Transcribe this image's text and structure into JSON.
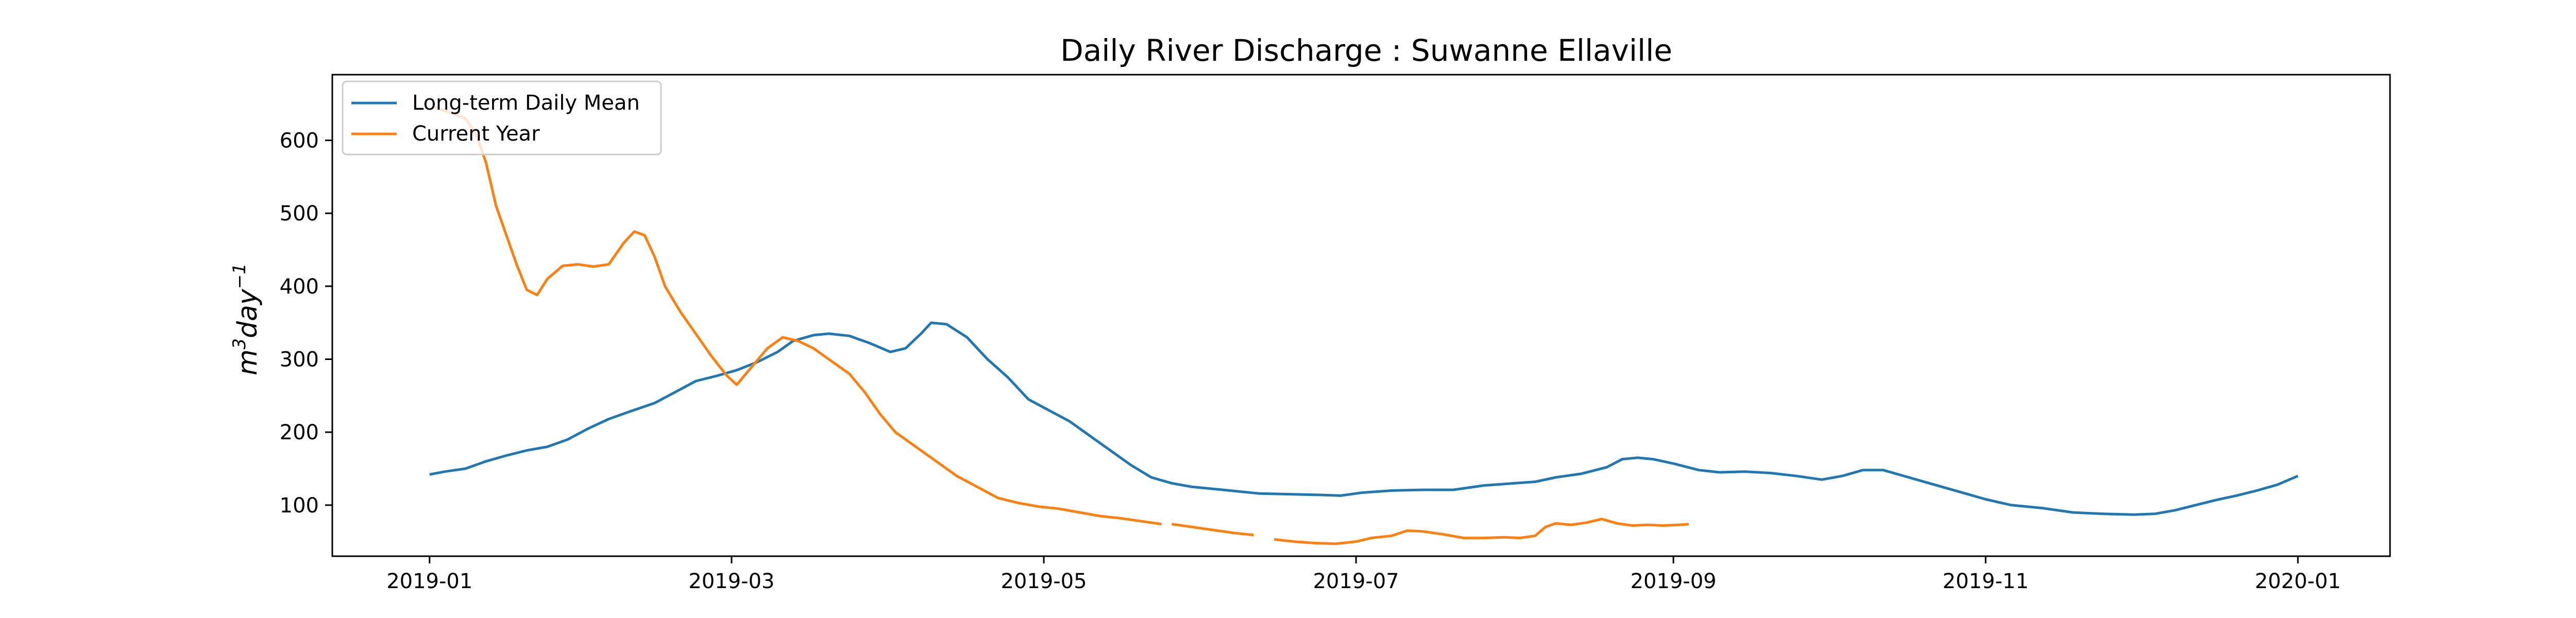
{
  "chart_data": {
    "type": "line",
    "title": "Daily River Discharge : Suwanne Ellaville",
    "xlabel": "",
    "ylabel": "m³day⁻¹",
    "ylabel_parts": {
      "base": "m",
      "sup1": "3",
      "mid": "day",
      "sup2": "−1"
    },
    "xlim": [
      "2018-12-13",
      "2020-01-19"
    ],
    "ylim": [
      30,
      690
    ],
    "xticks": [
      {
        "date": "2019-01-01",
        "label": "2019-01"
      },
      {
        "date": "2019-03-01",
        "label": "2019-03"
      },
      {
        "date": "2019-05-01",
        "label": "2019-05"
      },
      {
        "date": "2019-07-01",
        "label": "2019-07"
      },
      {
        "date": "2019-09-01",
        "label": "2019-09"
      },
      {
        "date": "2019-11-01",
        "label": "2019-11"
      },
      {
        "date": "2020-01-01",
        "label": "2020-01"
      }
    ],
    "yticks": [
      100,
      200,
      300,
      400,
      500,
      600
    ],
    "grid": false,
    "legend_position": "top-left",
    "series": [
      {
        "name": "Long-term Daily Mean",
        "color": "#1f77b4",
        "segments": [
          [
            [
              "2019-01-01",
              142
            ],
            [
              "2019-01-04",
              146
            ],
            [
              "2019-01-08",
              150
            ],
            [
              "2019-01-12",
              160
            ],
            [
              "2019-01-16",
              168
            ],
            [
              "2019-01-20",
              175
            ],
            [
              "2019-01-24",
              180
            ],
            [
              "2019-01-28",
              190
            ],
            [
              "2019-02-01",
              205
            ],
            [
              "2019-02-05",
              218
            ],
            [
              "2019-02-09",
              228
            ],
            [
              "2019-02-14",
              240
            ],
            [
              "2019-02-18",
              255
            ],
            [
              "2019-02-22",
              270
            ],
            [
              "2019-02-26",
              277
            ],
            [
              "2019-03-02",
              285
            ],
            [
              "2019-03-06",
              296
            ],
            [
              "2019-03-10",
              310
            ],
            [
              "2019-03-13",
              325
            ],
            [
              "2019-03-17",
              333
            ],
            [
              "2019-03-20",
              335
            ],
            [
              "2019-03-24",
              332
            ],
            [
              "2019-03-28",
              322
            ],
            [
              "2019-04-01",
              310
            ],
            [
              "2019-04-04",
              315
            ],
            [
              "2019-04-07",
              335
            ],
            [
              "2019-04-09",
              350
            ],
            [
              "2019-04-12",
              348
            ],
            [
              "2019-04-16",
              330
            ],
            [
              "2019-04-20",
              300
            ],
            [
              "2019-04-24",
              275
            ],
            [
              "2019-04-28",
              245
            ],
            [
              "2019-05-02",
              230
            ],
            [
              "2019-05-06",
              215
            ],
            [
              "2019-05-10",
              195
            ],
            [
              "2019-05-14",
              175
            ],
            [
              "2019-05-18",
              155
            ],
            [
              "2019-05-22",
              138
            ],
            [
              "2019-05-26",
              130
            ],
            [
              "2019-05-30",
              125
            ],
            [
              "2019-06-05",
              121
            ],
            [
              "2019-06-12",
              116
            ],
            [
              "2019-06-18",
              115
            ],
            [
              "2019-06-24",
              114
            ],
            [
              "2019-06-28",
              113
            ],
            [
              "2019-07-02",
              117
            ],
            [
              "2019-07-08",
              120
            ],
            [
              "2019-07-14",
              121
            ],
            [
              "2019-07-20",
              121
            ],
            [
              "2019-07-26",
              127
            ],
            [
              "2019-08-01",
              130
            ],
            [
              "2019-08-05",
              132
            ],
            [
              "2019-08-09",
              138
            ],
            [
              "2019-08-14",
              143
            ],
            [
              "2019-08-19",
              152
            ],
            [
              "2019-08-22",
              163
            ],
            [
              "2019-08-25",
              165
            ],
            [
              "2019-08-28",
              163
            ],
            [
              "2019-09-01",
              157
            ],
            [
              "2019-09-06",
              148
            ],
            [
              "2019-09-10",
              145
            ],
            [
              "2019-09-15",
              146
            ],
            [
              "2019-09-20",
              144
            ],
            [
              "2019-09-25",
              140
            ],
            [
              "2019-09-30",
              135
            ],
            [
              "2019-10-04",
              140
            ],
            [
              "2019-10-08",
              148
            ],
            [
              "2019-10-12",
              148
            ],
            [
              "2019-10-17",
              138
            ],
            [
              "2019-10-22",
              128
            ],
            [
              "2019-10-27",
              118
            ],
            [
              "2019-11-01",
              108
            ],
            [
              "2019-11-06",
              100
            ],
            [
              "2019-11-12",
              96
            ],
            [
              "2019-11-18",
              90
            ],
            [
              "2019-11-24",
              88
            ],
            [
              "2019-11-30",
              87
            ],
            [
              "2019-12-04",
              88
            ],
            [
              "2019-12-08",
              93
            ],
            [
              "2019-12-12",
              100
            ],
            [
              "2019-12-16",
              107
            ],
            [
              "2019-12-20",
              113
            ],
            [
              "2019-12-24",
              120
            ],
            [
              "2019-12-28",
              128
            ],
            [
              "2020-01-01",
              140
            ]
          ]
        ]
      },
      {
        "name": "Current Year",
        "color": "#ff7f0e",
        "segments": [
          [
            [
              "2019-01-02",
              645
            ],
            [
              "2019-01-05",
              638
            ],
            [
              "2019-01-08",
              630
            ],
            [
              "2019-01-10",
              610
            ],
            [
              "2019-01-12",
              570
            ],
            [
              "2019-01-14",
              510
            ],
            [
              "2019-01-16",
              470
            ],
            [
              "2019-01-18",
              430
            ],
            [
              "2019-01-20",
              395
            ],
            [
              "2019-01-22",
              388
            ],
            [
              "2019-01-24",
              410
            ],
            [
              "2019-01-27",
              428
            ],
            [
              "2019-01-30",
              430
            ],
            [
              "2019-02-02",
              427
            ],
            [
              "2019-02-05",
              430
            ],
            [
              "2019-02-08",
              460
            ],
            [
              "2019-02-10",
              475
            ],
            [
              "2019-02-12",
              470
            ],
            [
              "2019-02-14",
              440
            ],
            [
              "2019-02-16",
              400
            ],
            [
              "2019-02-19",
              365
            ],
            [
              "2019-02-22",
              335
            ],
            [
              "2019-02-25",
              305
            ],
            [
              "2019-02-28",
              278
            ],
            [
              "2019-03-02",
              265
            ],
            [
              "2019-03-05",
              290
            ],
            [
              "2019-03-08",
              315
            ],
            [
              "2019-03-11",
              330
            ],
            [
              "2019-03-14",
              325
            ],
            [
              "2019-03-17",
              315
            ],
            [
              "2019-03-20",
              300
            ],
            [
              "2019-03-24",
              280
            ],
            [
              "2019-03-27",
              255
            ],
            [
              "2019-03-30",
              225
            ],
            [
              "2019-04-02",
              200
            ],
            [
              "2019-04-06",
              180
            ],
            [
              "2019-04-10",
              160
            ],
            [
              "2019-04-14",
              140
            ],
            [
              "2019-04-18",
              125
            ],
            [
              "2019-04-22",
              110
            ],
            [
              "2019-04-26",
              103
            ],
            [
              "2019-04-30",
              98
            ],
            [
              "2019-05-04",
              95
            ],
            [
              "2019-05-08",
              90
            ],
            [
              "2019-05-12",
              85
            ],
            [
              "2019-05-16",
              82
            ],
            [
              "2019-05-20",
              78
            ],
            [
              "2019-05-24",
              74
            ]
          ],
          [
            [
              "2019-05-26",
              74
            ],
            [
              "2019-05-30",
              70
            ],
            [
              "2019-06-03",
              66
            ],
            [
              "2019-06-07",
              62
            ],
            [
              "2019-06-11",
              59
            ]
          ],
          [
            [
              "2019-06-15",
              53
            ],
            [
              "2019-06-19",
              50
            ],
            [
              "2019-06-23",
              48
            ],
            [
              "2019-06-27",
              47
            ],
            [
              "2019-07-01",
              50
            ],
            [
              "2019-07-04",
              55
            ],
            [
              "2019-07-08",
              58
            ],
            [
              "2019-07-11",
              65
            ],
            [
              "2019-07-14",
              64
            ],
            [
              "2019-07-18",
              60
            ],
            [
              "2019-07-22",
              55
            ],
            [
              "2019-07-26",
              55
            ],
            [
              "2019-07-30",
              56
            ],
            [
              "2019-08-02",
              55
            ],
            [
              "2019-08-05",
              58
            ],
            [
              "2019-08-07",
              70
            ],
            [
              "2019-08-09",
              75
            ],
            [
              "2019-08-12",
              73
            ],
            [
              "2019-08-15",
              76
            ],
            [
              "2019-08-18",
              81
            ],
            [
              "2019-08-21",
              75
            ],
            [
              "2019-08-24",
              72
            ],
            [
              "2019-08-27",
              73
            ],
            [
              "2019-08-30",
              72
            ],
            [
              "2019-09-02",
              73
            ],
            [
              "2019-09-04",
              74
            ]
          ]
        ]
      }
    ]
  }
}
